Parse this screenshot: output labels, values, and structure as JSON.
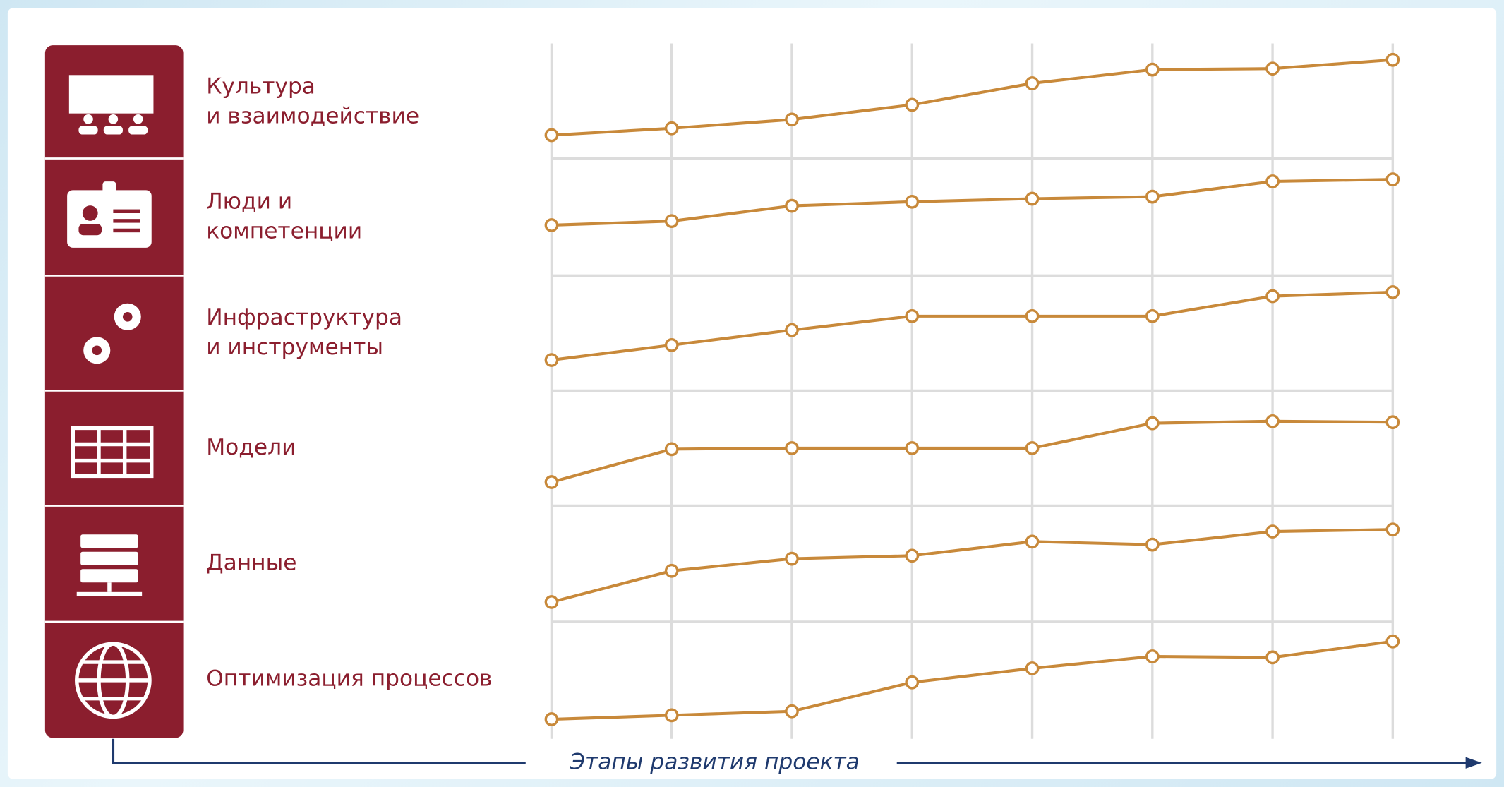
{
  "chart_data": [
    {
      "type": "line",
      "title": [
        "Культура",
        "и взаимодействие"
      ],
      "categories": [
        null,
        null,
        null,
        null,
        null,
        null,
        null,
        null
      ],
      "values": [
        16,
        23,
        32,
        47,
        69,
        83,
        84,
        93
      ],
      "ylim": [
        0,
        100
      ],
      "color": "#c8893a"
    },
    {
      "type": "line",
      "title": [
        "Люди и",
        "компетенции"
      ],
      "categories": [
        null,
        null,
        null,
        null,
        null,
        null,
        null,
        null
      ],
      "values": [
        42,
        46,
        61,
        65,
        68,
        70,
        85,
        87
      ],
      "ylim": [
        0,
        100
      ],
      "color": "#c8893a"
    },
    {
      "type": "line",
      "title": [
        "Инфраструктура",
        "и инструменты"
      ],
      "categories": [
        null,
        null,
        null,
        null,
        null,
        null,
        null,
        null
      ],
      "values": [
        23,
        38,
        53,
        67,
        67,
        67,
        87,
        91
      ],
      "ylim": [
        0,
        100
      ],
      "color": "#c8893a"
    },
    {
      "type": "line",
      "title": [
        "Модели"
      ],
      "categories": [
        null,
        null,
        null,
        null,
        null,
        null,
        null,
        null
      ],
      "values": [
        16,
        49,
        50,
        50,
        50,
        75,
        77,
        76
      ],
      "ylim": [
        0,
        100
      ],
      "color": "#c8893a"
    },
    {
      "type": "line",
      "title": [
        "Данные"
      ],
      "categories": [
        null,
        null,
        null,
        null,
        null,
        null,
        null,
        null
      ],
      "values": [
        12,
        43,
        55,
        58,
        72,
        69,
        82,
        84
      ],
      "ylim": [
        0,
        100
      ],
      "color": "#c8893a"
    },
    {
      "type": "line",
      "title": [
        "Оптимизация процессов"
      ],
      "categories": [
        null,
        null,
        null,
        null,
        null,
        null,
        null,
        null
      ],
      "values": [
        10,
        14,
        18,
        47,
        61,
        73,
        72,
        88
      ],
      "ylim": [
        0,
        100
      ],
      "color": "#c8893a"
    }
  ],
  "axis_label": "Этапы развития проекта"
}
